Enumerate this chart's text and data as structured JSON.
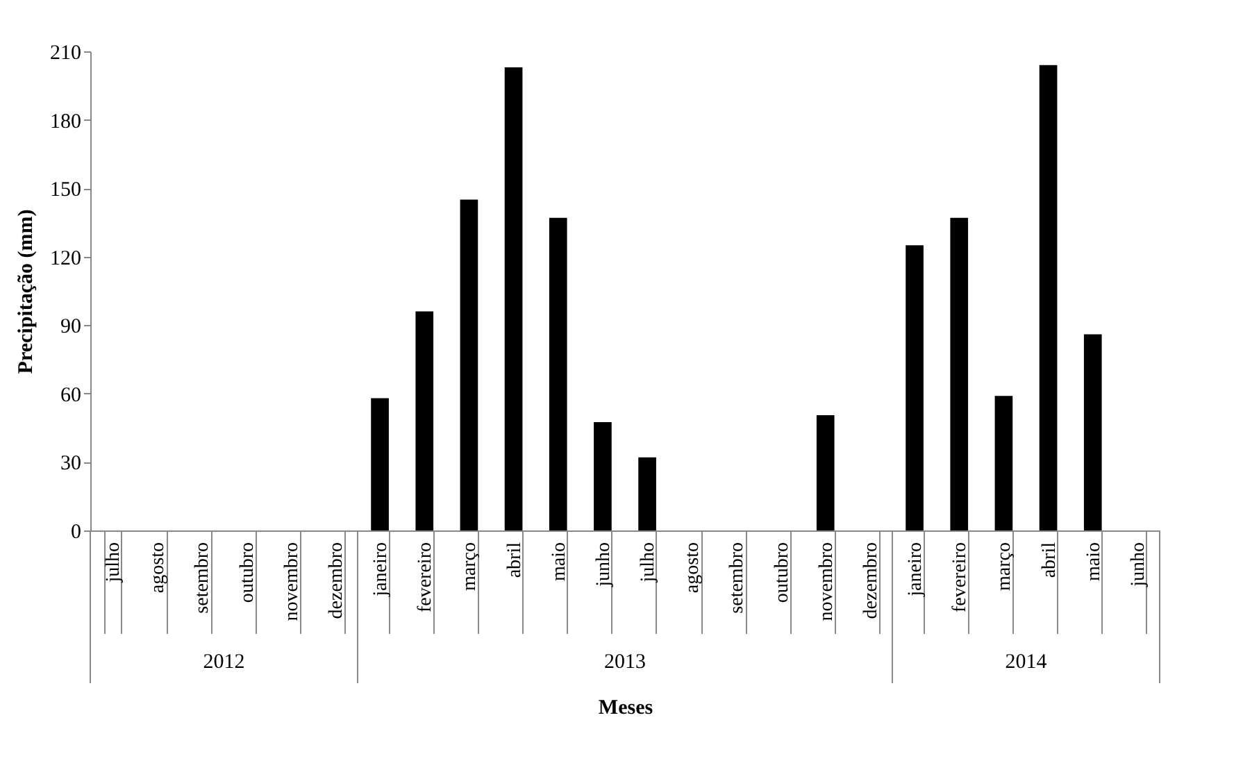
{
  "chart_data": {
    "type": "bar",
    "categories": [
      "julho",
      "agosto",
      "setembro",
      "outubro",
      "novembro",
      "dezembro",
      "janeiro",
      "fevereiro",
      "março",
      "abril",
      "maio",
      "junho",
      "julho",
      "agosto",
      "setembro",
      "outubro",
      "novembro",
      "dezembro",
      "janeiro",
      "fevereiro",
      "março",
      "abril",
      "maio",
      "junho"
    ],
    "values": [
      0,
      0,
      0,
      0,
      0,
      0,
      58,
      96,
      145,
      203,
      137,
      47.5,
      32,
      0,
      0,
      0,
      50.5,
      0,
      125,
      137,
      59,
      204,
      86,
      0
    ],
    "color": "#000000",
    "ylim": [
      0,
      210
    ],
    "yticks": [
      0,
      30,
      60,
      90,
      120,
      150,
      180,
      210
    ],
    "xlabel": "Meses",
    "ylabel": "Precipitação (mm)",
    "annotations": [
      "2012",
      "2013",
      "2014"
    ]
  }
}
